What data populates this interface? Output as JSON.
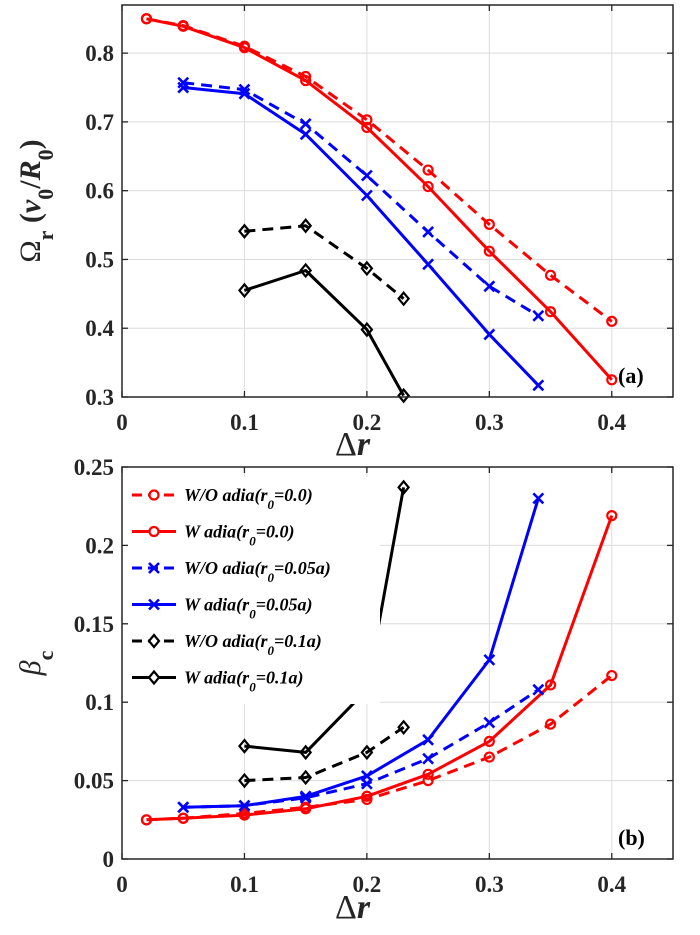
{
  "chart_data": [
    {
      "type": "line",
      "panel_label": "(a)",
      "xlabel_symbol": "Δ",
      "xlabel_var": "r",
      "ylabel": "Ω_r (v_0/R_0)",
      "xlim": [
        0,
        0.45
      ],
      "ylim": [
        0.3,
        0.87
      ],
      "xticks": [
        0,
        0.1,
        0.2,
        0.3,
        0.4
      ],
      "xtick_labels": [
        "0",
        "0.1",
        "0.2",
        "0.3",
        "0.4"
      ],
      "yticks": [
        0.3,
        0.4,
        0.5,
        0.6,
        0.7,
        0.8
      ],
      "ytick_labels": [
        "0.3",
        "0.4",
        "0.5",
        "0.6",
        "0.7",
        "0.8"
      ],
      "grid": true,
      "series": [
        {
          "color": "#ff0000",
          "dash": true,
          "marker": "circle",
          "x": [
            0.02,
            0.05,
            0.1,
            0.15,
            0.2,
            0.25,
            0.3,
            0.35,
            0.4
          ],
          "y": [
            0.85,
            0.84,
            0.81,
            0.766,
            0.703,
            0.63,
            0.551,
            0.477,
            0.41
          ]
        },
        {
          "color": "#ff0000",
          "dash": false,
          "marker": "circle",
          "x": [
            0.02,
            0.05,
            0.1,
            0.15,
            0.2,
            0.25,
            0.3,
            0.35,
            0.4
          ],
          "y": [
            0.85,
            0.839,
            0.808,
            0.76,
            0.692,
            0.606,
            0.512,
            0.424,
            0.325
          ]
        },
        {
          "color": "#0000ff",
          "dash": true,
          "marker": "x",
          "x": [
            0.05,
            0.1,
            0.15,
            0.2,
            0.25,
            0.3,
            0.34
          ],
          "y": [
            0.757,
            0.747,
            0.697,
            0.622,
            0.54,
            0.461,
            0.418
          ]
        },
        {
          "color": "#0000ff",
          "dash": false,
          "marker": "x",
          "x": [
            0.05,
            0.1,
            0.15,
            0.2,
            0.25,
            0.3,
            0.34
          ],
          "y": [
            0.75,
            0.741,
            0.682,
            0.593,
            0.493,
            0.391,
            0.317
          ]
        },
        {
          "color": "#000000",
          "dash": true,
          "marker": "diamond",
          "x": [
            0.1,
            0.15,
            0.2,
            0.23
          ],
          "y": [
            0.541,
            0.549,
            0.487,
            0.443
          ]
        },
        {
          "color": "#000000",
          "dash": false,
          "marker": "diamond",
          "x": [
            0.1,
            0.15,
            0.2,
            0.23
          ],
          "y": [
            0.455,
            0.484,
            0.398,
            0.302
          ]
        }
      ]
    },
    {
      "type": "line",
      "panel_label": "(b)",
      "xlabel_symbol": "Δ",
      "xlabel_var": "r",
      "ylabel": "β_c",
      "xlim": [
        0,
        0.45
      ],
      "ylim": [
        0,
        0.25
      ],
      "xticks": [
        0,
        0.1,
        0.2,
        0.3,
        0.4
      ],
      "xtick_labels": [
        "0",
        "0.1",
        "0.2",
        "0.3",
        "0.4"
      ],
      "yticks": [
        0,
        0.05,
        0.1,
        0.15,
        0.2,
        0.25
      ],
      "ytick_labels": [
        "0",
        "0.05",
        "0.1",
        "0.15",
        "0.2",
        "0.25"
      ],
      "grid": true,
      "legend_position": "top-left",
      "series": [
        {
          "name": "W/O adia(r_0=0.0)",
          "color": "#ff0000",
          "dash": true,
          "marker": "circle",
          "x": [
            0.02,
            0.05,
            0.1,
            0.15,
            0.2,
            0.25,
            0.3,
            0.35,
            0.4
          ],
          "y": [
            0.025,
            0.026,
            0.029,
            0.033,
            0.038,
            0.05,
            0.065,
            0.086,
            0.117
          ]
        },
        {
          "name": "W adia(r_0=0.0)",
          "color": "#ff0000",
          "dash": false,
          "marker": "circle",
          "x": [
            0.02,
            0.05,
            0.1,
            0.15,
            0.2,
            0.25,
            0.3,
            0.35,
            0.4
          ],
          "y": [
            0.025,
            0.026,
            0.028,
            0.032,
            0.04,
            0.054,
            0.075,
            0.111,
            0.219
          ]
        },
        {
          "name": "W/O adia(r_0=0.05a)",
          "color": "#0000ff",
          "dash": true,
          "marker": "x",
          "x": [
            0.05,
            0.1,
            0.15,
            0.2,
            0.25,
            0.3,
            0.34
          ],
          "y": [
            0.033,
            0.034,
            0.039,
            0.048,
            0.064,
            0.087,
            0.108
          ]
        },
        {
          "name": "W adia(r_0=0.05a)",
          "color": "#0000ff",
          "dash": false,
          "marker": "x",
          "x": [
            0.05,
            0.1,
            0.15,
            0.2,
            0.25,
            0.3,
            0.34
          ],
          "y": [
            0.033,
            0.034,
            0.04,
            0.053,
            0.076,
            0.127,
            0.23
          ]
        },
        {
          "name": "W/O adia(r_0=0.1a)",
          "color": "#000000",
          "dash": true,
          "marker": "diamond",
          "x": [
            0.1,
            0.15,
            0.2,
            0.23
          ],
          "y": [
            0.05,
            0.052,
            0.068,
            0.084
          ]
        },
        {
          "name": "W adia(r_0=0.1a)",
          "color": "#000000",
          "dash": false,
          "marker": "diamond",
          "x": [
            0.1,
            0.15,
            0.2,
            0.23
          ],
          "y": [
            0.072,
            0.068,
            0.108,
            0.237
          ]
        }
      ]
    }
  ]
}
